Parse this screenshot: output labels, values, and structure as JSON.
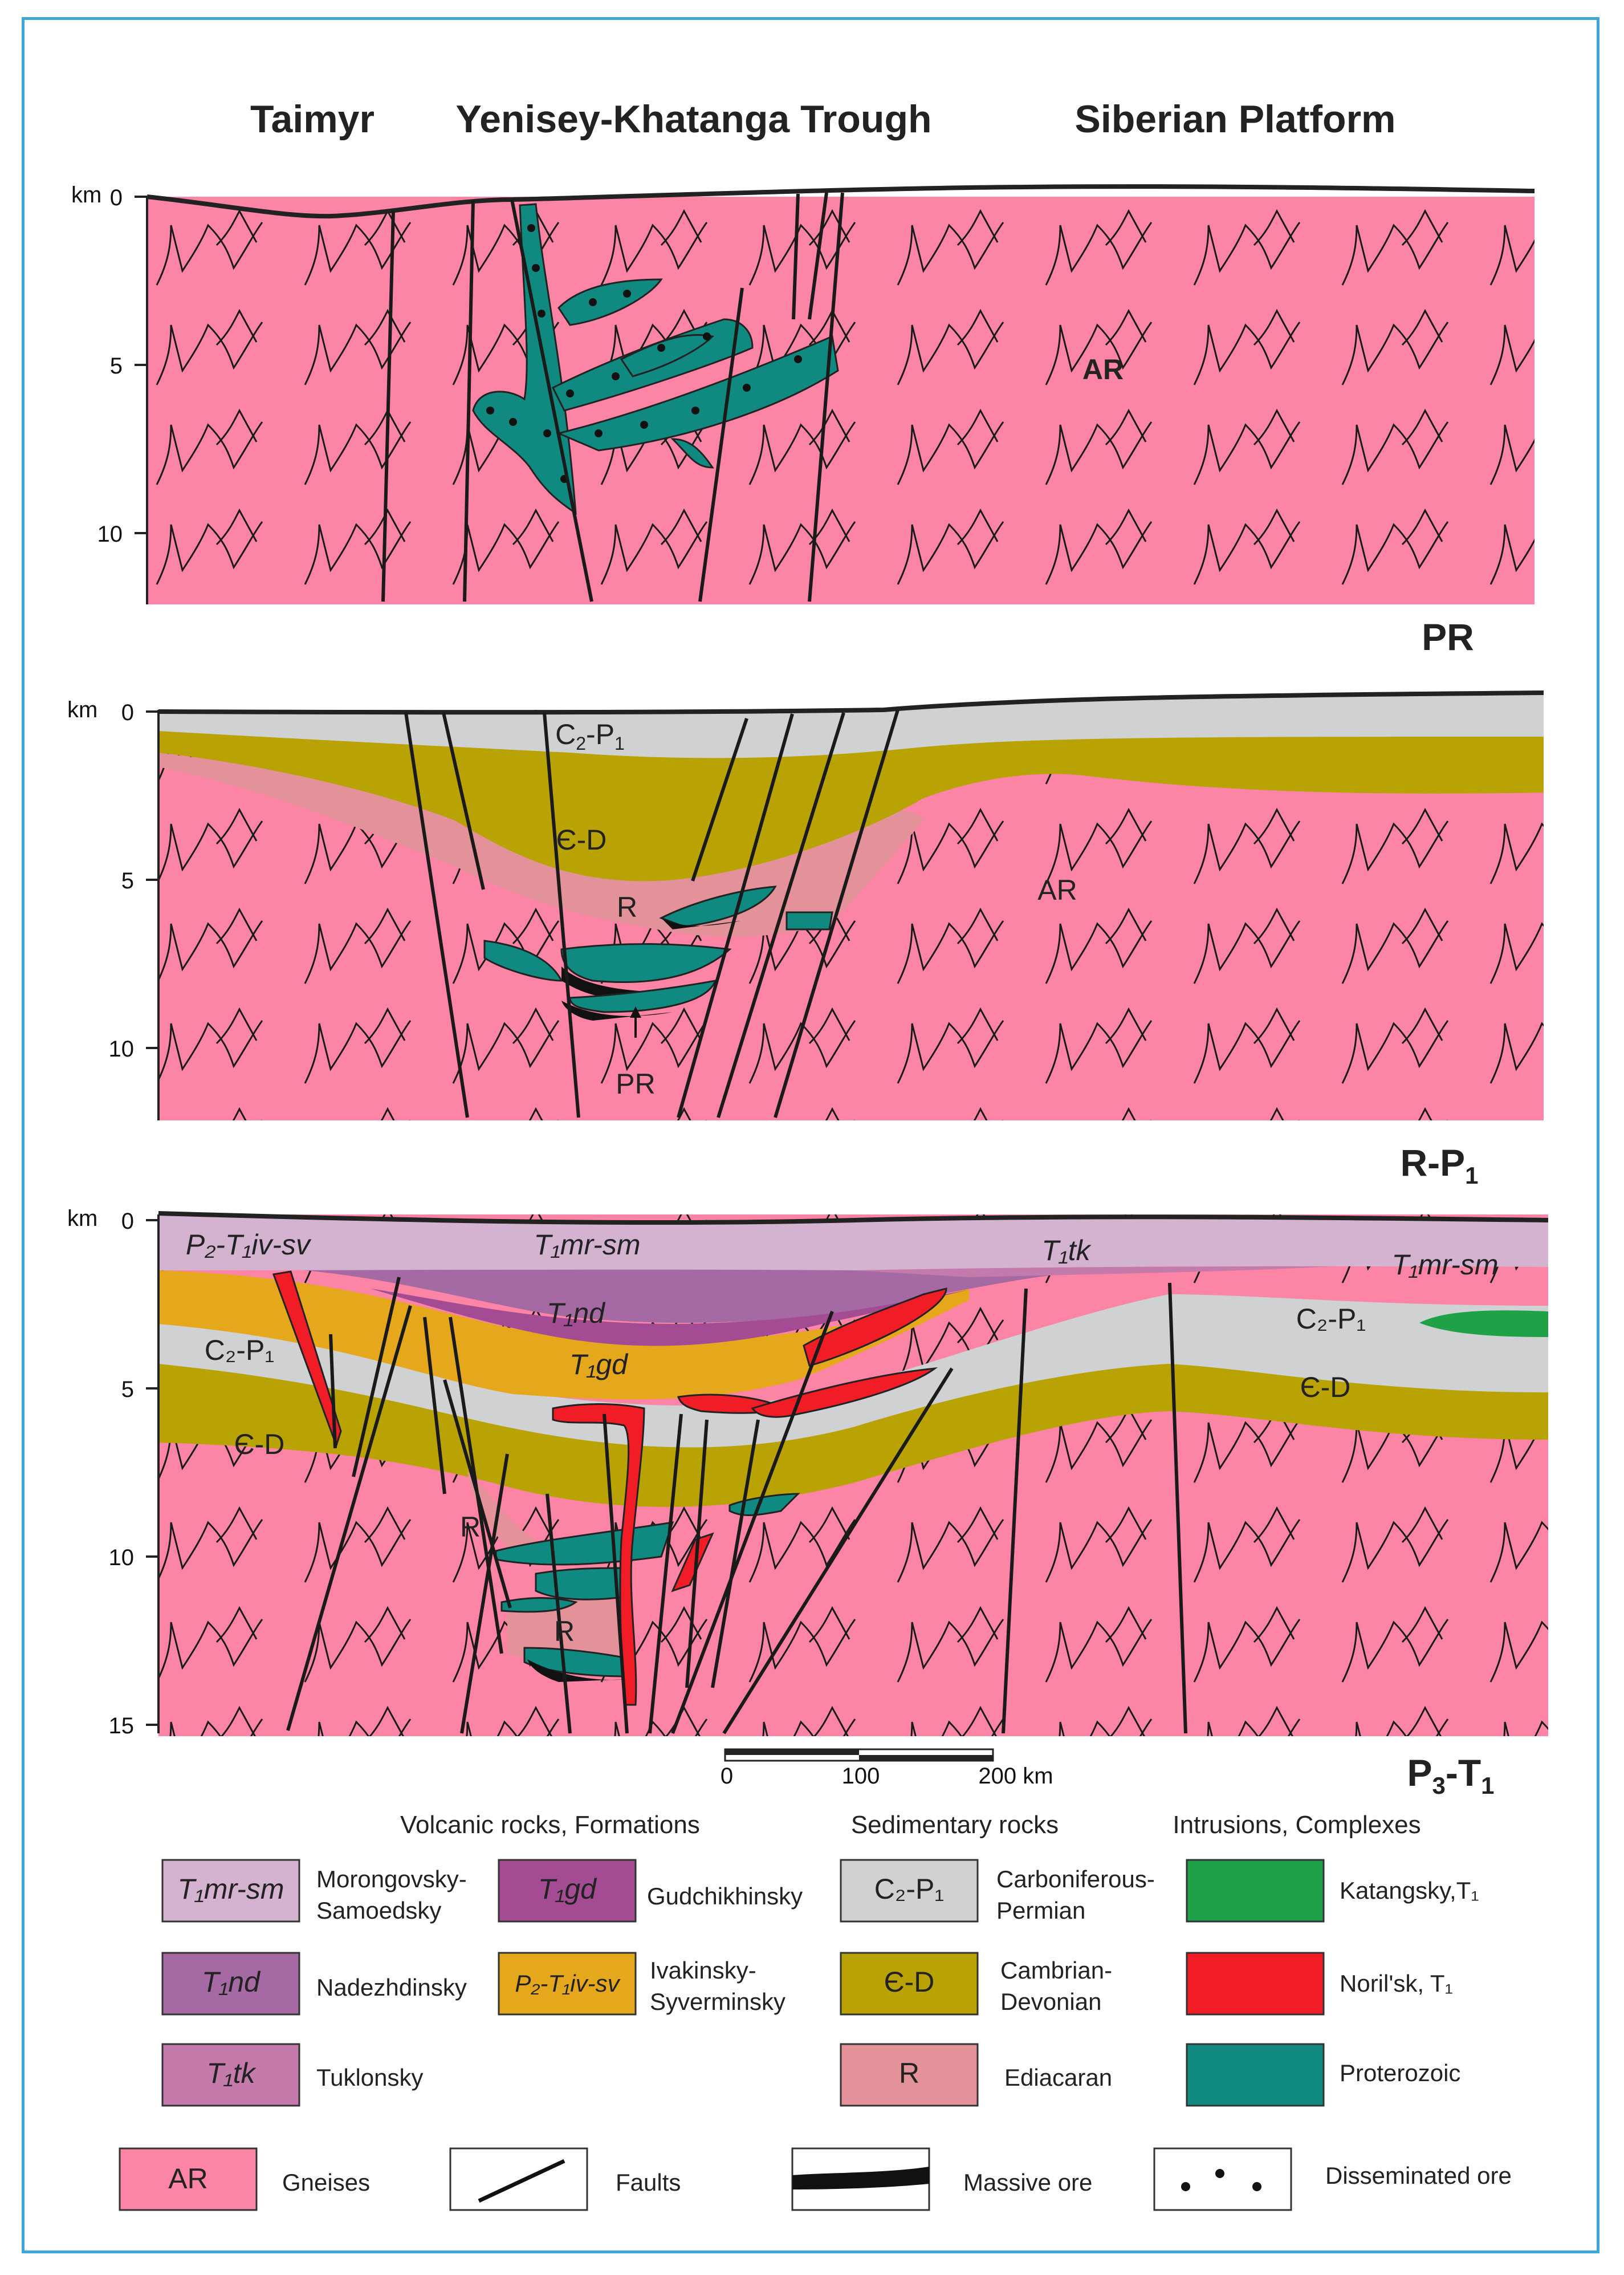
{
  "headers": {
    "taimyr": "Taimyr",
    "trough": "Yenisey-Khatanga Trough",
    "platform": "Siberian Platform"
  },
  "axis_unit": "km",
  "sections": [
    {
      "age": "PR",
      "ticks": [
        "0",
        "5",
        "10"
      ],
      "labels": {
        "ar": "AR"
      }
    },
    {
      "age_main": "R-P",
      "age_sub": "1",
      "ticks": [
        "0",
        "5",
        "10"
      ],
      "labels": {
        "c2p1_main": "C",
        "c2p1_sub1": "2",
        "c2p1_mid": "-P",
        "c2p1_sub2": "1",
        "cd": "Є-D",
        "r": "R",
        "ar": "AR",
        "pr": "PR"
      }
    },
    {
      "age_main1": "P",
      "age_sub1": "3",
      "age_mid": "-T",
      "age_sub2": "1",
      "ticks": [
        "0",
        "5",
        "10",
        "15"
      ],
      "labels": {
        "ivsv": "P₂-T₁iv-sv",
        "mrsm": "T₁mr-sm",
        "tk": "T₁tk",
        "mrsm2": "T₁mr-sm",
        "nd": "T₁nd",
        "gd": "T₁gd",
        "c2p1a": "C₂-P₁",
        "c2p1b": "C₂-P₁",
        "cd_left": "Є-D",
        "cd_right": "Є-D",
        "r1": "R",
        "r2": "R"
      }
    }
  ],
  "scale_bar": {
    "ticks": [
      "0",
      "100",
      "200 km"
    ]
  },
  "legend": {
    "headings": {
      "volcanic": "Volcanic rocks, Formations",
      "sedimentary": "Sedimentary rocks",
      "intrusions": "Intrusions, Complexes"
    },
    "items": [
      {
        "code": "T₁mr-sm",
        "name1": "Morongovsky-",
        "name2": "Samoedsky",
        "color": "#d4b3d1"
      },
      {
        "code": "T₁gd",
        "name1": "Gudchikhinsky",
        "name2": "",
        "color": "#a34c94"
      },
      {
        "code": "T₁nd",
        "name1": "Nadezhdinsky",
        "name2": "",
        "color": "#a569a3"
      },
      {
        "code": "P₂-T₁iv-sv",
        "name1": "Ivakinsky-",
        "name2": "Syverminsky",
        "color": "#e5a81c"
      },
      {
        "code": "T₁tk",
        "name1": "Tuklonsky",
        "name2": "",
        "color": "#c47aab"
      },
      {
        "code": "C₂-P₁",
        "name1": "Carboniferous-",
        "name2": "Permian",
        "color": "#cfd1d2"
      },
      {
        "code": "Є-D",
        "name1": "Cambrian-",
        "name2": "Devonian",
        "color": "#b8a204"
      },
      {
        "code": "R",
        "name1": "Ediacaran",
        "name2": "",
        "color": "#e3929a"
      },
      {
        "code": "",
        "name1": "Katangsky,T₁",
        "name2": "",
        "color": "#1fa247"
      },
      {
        "code": "",
        "name1": "Noril'sk, T₁",
        "name2": "",
        "color": "#f01c26"
      },
      {
        "code": "",
        "name1": "Proterozoic",
        "name2": "",
        "color": "#108a80"
      },
      {
        "code": "AR",
        "name1": "Gneises",
        "name2": "",
        "color": "#fc84a4"
      },
      {
        "code": "",
        "name1": "Faults",
        "name2": ""
      },
      {
        "code": "",
        "name1": "Massive ore",
        "name2": ""
      },
      {
        "code": "",
        "name1": "Disseminated ore",
        "name2": ""
      }
    ]
  }
}
